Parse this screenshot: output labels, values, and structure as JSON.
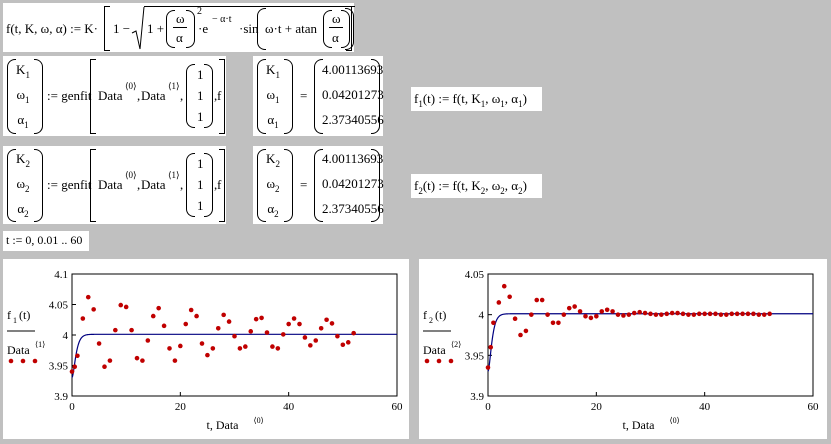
{
  "func_def": {
    "lhs": "f(t, K, ω, α) := K·",
    "one": "1 −",
    "one_inner": "1 +",
    "omega": "ω",
    "alpha": "α",
    "power": "2",
    "exp_base": "·e",
    "exp": "− α·t",
    "sin_part": "·sin",
    "sin_arg": "ω·t + atan"
  },
  "fit1": {
    "vars": [
      "K",
      "ω",
      "α"
    ],
    "subs": [
      "1",
      "1",
      "1"
    ],
    "assign": ":= genfit",
    "data_a": "Data",
    "sup_a": "⟨0⟩",
    "data_b": "Data",
    "sup_b": "⟨1⟩",
    "guess": [
      "1",
      "1",
      "1"
    ],
    "f": "f",
    "eq": "=",
    "results": [
      "4.00113693",
      "0.04201273",
      "2.37340556"
    ],
    "fdef_name": "f",
    "fdef_sub": "1",
    "fdef": "(t) := f(t, K",
    "fdef_tail": ", ω",
    "fdef_tail2": ", α",
    "fdef_end": ")"
  },
  "fit2": {
    "vars": [
      "K",
      "ω",
      "α"
    ],
    "subs": [
      "2",
      "2",
      "2"
    ],
    "assign": ":= genfit",
    "data_a": "Data",
    "sup_a": "⟨0⟩",
    "data_b": "Data",
    "sup_b": "⟨1⟩",
    "guess": [
      "1",
      "1",
      "1"
    ],
    "f": "f",
    "eq": "=",
    "results": [
      "4.00113693",
      "0.04201273",
      "2.37340556"
    ],
    "fdef_name": "f",
    "fdef_sub": "2",
    "fdef": "(t) := f(t, K",
    "fdef_tail": ", ω",
    "fdef_tail2": ", α",
    "fdef_end": ")"
  },
  "range_def": "t := 0, 0.01 .. 60",
  "chart_data": [
    {
      "type": "scatter",
      "ylabel_top": "f",
      "ylabel_top_sub": "1",
      "ylabel_top_arg": "(t)",
      "ylabel_bottom": "Data",
      "ylabel_bottom_sup": "⟨1⟩",
      "xlabel": "t, Data",
      "xlabel_sup": "⟨0⟩",
      "xlim": [
        0,
        60
      ],
      "ylim": [
        3.9,
        4.1
      ],
      "xticks": [
        "0",
        "20",
        "40",
        "60"
      ],
      "yticks": [
        "3.9",
        "3.95",
        "4",
        "4.05",
        "4.1"
      ],
      "line_color": "#000080",
      "point_color": "#c00000",
      "fit": {
        "K": 4.00113693,
        "w": 0.04201273,
        "a": 2.37340556
      },
      "series": [
        {
          "values": [
            [
              0,
              3.94
            ],
            [
              0.5,
              3.948
            ],
            [
              1,
              3.966
            ],
            [
              2,
              4.027
            ],
            [
              3,
              4.062
            ],
            [
              4,
              4.042
            ],
            [
              5,
              3.986
            ],
            [
              6,
              3.948
            ],
            [
              7,
              3.958
            ],
            [
              8,
              4.008
            ],
            [
              9,
              4.049
            ],
            [
              10,
              4.046
            ],
            [
              11,
              4.008
            ],
            [
              12,
              3.962
            ],
            [
              13,
              3.958
            ],
            [
              14,
              3.991
            ],
            [
              15,
              4.031
            ],
            [
              16,
              4.044
            ],
            [
              17,
              4.015
            ],
            [
              18,
              3.978
            ],
            [
              19,
              3.958
            ],
            [
              20,
              3.982
            ],
            [
              21,
              4.018
            ],
            [
              22,
              4.041
            ],
            [
              23,
              4.031
            ],
            [
              24,
              3.986
            ],
            [
              25,
              3.967
            ],
            [
              26,
              3.978
            ],
            [
              27,
              4.011
            ],
            [
              28,
              4.033
            ],
            [
              29,
              4.022
            ],
            [
              30,
              3.998
            ],
            [
              31,
              3.978
            ],
            [
              32,
              3.981
            ],
            [
              33,
              4.006
            ],
            [
              34,
              4.026
            ],
            [
              35,
              4.028
            ],
            [
              36,
              4.004
            ],
            [
              37,
              3.981
            ],
            [
              38,
              3.978
            ],
            [
              39,
              4.001
            ],
            [
              40,
              4.018
            ],
            [
              41,
              4.027
            ],
            [
              42,
              4.018
            ],
            [
              43,
              3.996
            ],
            [
              44,
              3.983
            ],
            [
              45,
              3.991
            ],
            [
              46,
              4.011
            ],
            [
              47,
              4.025
            ],
            [
              48,
              4.019
            ],
            [
              49,
              3.998
            ],
            [
              50,
              3.984
            ],
            [
              51,
              3.988
            ],
            [
              52,
              4.003
            ]
          ]
        }
      ]
    },
    {
      "type": "scatter",
      "ylabel_top": "f",
      "ylabel_top_sub": "2",
      "ylabel_top_arg": "(t)",
      "ylabel_bottom": "Data",
      "ylabel_bottom_sup": "⟨2⟩",
      "xlabel": "t, Data",
      "xlabel_sup": "⟨0⟩",
      "xlim": [
        0,
        60
      ],
      "ylim": [
        3.9,
        4.05
      ],
      "xticks": [
        "0",
        "20",
        "40",
        "60"
      ],
      "yticks": [
        "3.9",
        "3.95",
        "4",
        "4.05"
      ],
      "line_color": "#000080",
      "point_color": "#c00000",
      "fit": {
        "K": 4.00113693,
        "w": 0.04201273,
        "a": 2.37340556
      },
      "series": [
        {
          "values": [
            [
              0,
              3.935
            ],
            [
              0.5,
              3.96
            ],
            [
              1,
              3.99
            ],
            [
              2,
              4.015
            ],
            [
              3,
              4.035
            ],
            [
              4,
              4.022
            ],
            [
              5,
              3.995
            ],
            [
              6,
              3.975
            ],
            [
              7,
              3.98
            ],
            [
              8,
              4.0
            ],
            [
              9,
              4.018
            ],
            [
              10,
              4.018
            ],
            [
              11,
              4.0
            ],
            [
              12,
              3.99
            ],
            [
              13,
              3.99
            ],
            [
              14,
              4.0
            ],
            [
              15,
              4.008
            ],
            [
              16,
              4.01
            ],
            [
              17,
              4.004
            ],
            [
              18,
              3.998
            ],
            [
              19,
              3.996
            ],
            [
              20,
              3.998
            ],
            [
              21,
              4.004
            ],
            [
              22,
              4.006
            ],
            [
              23,
              4.004
            ],
            [
              24,
              4.0
            ],
            [
              25,
              3.999
            ],
            [
              26,
              4.0
            ],
            [
              27,
              4.002
            ],
            [
              28,
              4.003
            ],
            [
              29,
              4.002
            ],
            [
              30,
              4.001
            ],
            [
              31,
              4.0
            ],
            [
              32,
              4.0
            ],
            [
              33,
              4.001
            ],
            [
              34,
              4.002
            ],
            [
              35,
              4.002
            ],
            [
              36,
              4.001
            ],
            [
              37,
              4.0
            ],
            [
              38,
              4.0
            ],
            [
              39,
              4.001
            ],
            [
              40,
              4.001
            ],
            [
              41,
              4.001
            ],
            [
              42,
              4.001
            ],
            [
              43,
              4.0
            ],
            [
              44,
              4.0
            ],
            [
              45,
              4.001
            ],
            [
              46,
              4.001
            ],
            [
              47,
              4.001
            ],
            [
              48,
              4.001
            ],
            [
              49,
              4.001
            ],
            [
              50,
              4.0
            ],
            [
              51,
              4.0
            ],
            [
              52,
              4.001
            ]
          ]
        }
      ]
    }
  ]
}
